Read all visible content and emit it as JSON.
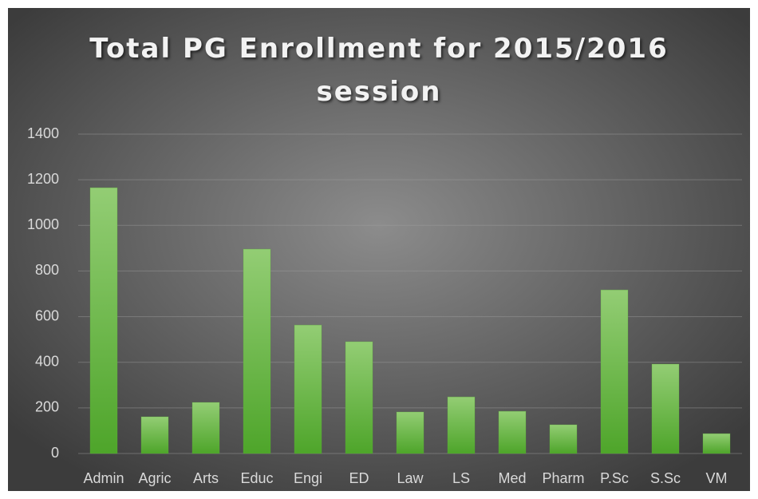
{
  "chart_data": {
    "type": "bar",
    "title": "Total PG Enrollment for 2015/2016 session",
    "categories": [
      "Admin",
      "Agric",
      "Arts",
      "Educ",
      "Engi",
      "ED",
      "Law",
      "LS",
      "Med",
      "Pharm",
      "P.Sc",
      "S.Sc",
      "VM"
    ],
    "values": [
      1165,
      161,
      224,
      896,
      563,
      490,
      182,
      248,
      185,
      126,
      717,
      392,
      87
    ],
    "color": "#5aae34",
    "ylim": [
      0,
      1400
    ],
    "yticks": [
      0,
      200,
      400,
      600,
      800,
      1000,
      1200,
      1400
    ],
    "grid": true
  }
}
